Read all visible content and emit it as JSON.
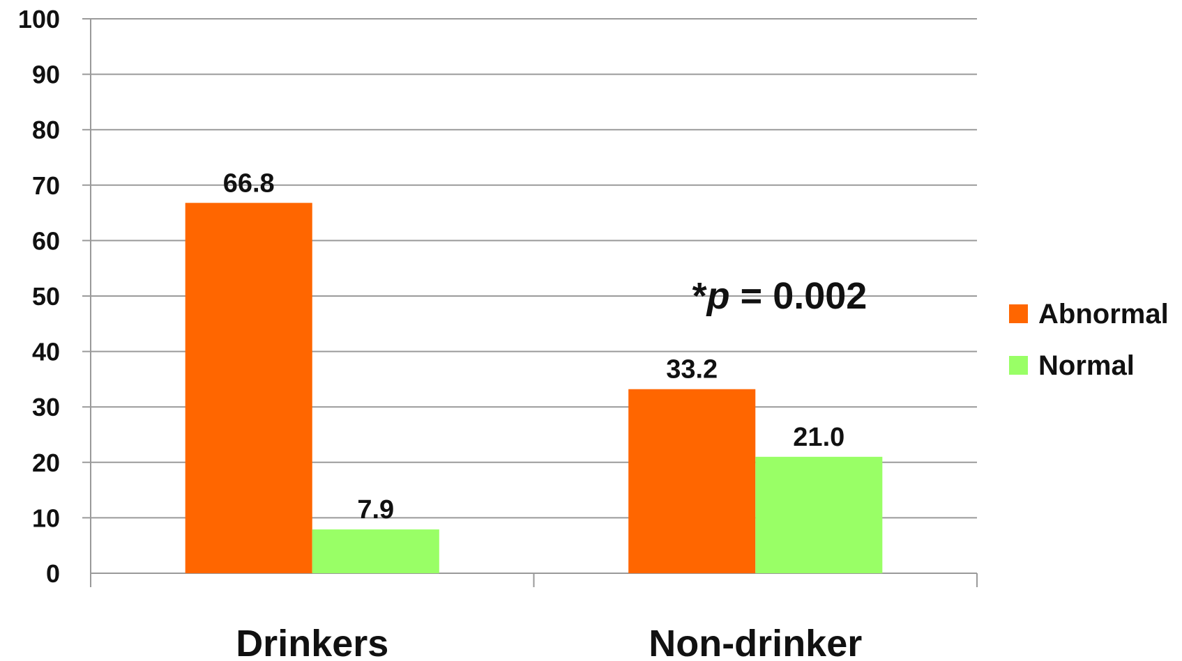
{
  "chart_data": {
    "type": "bar",
    "categories": [
      "Drinkers",
      "Non-drinker"
    ],
    "series": [
      {
        "name": "Abnormal",
        "values": [
          66.8,
          33.2
        ],
        "labels": [
          "66.8",
          "33.2"
        ],
        "color": "#ff6600"
      },
      {
        "name": "Normal",
        "values": [
          7.9,
          21.0
        ],
        "labels": [
          "7.9",
          "21.0"
        ],
        "color": "#99ff66"
      }
    ],
    "ylim": [
      0,
      100
    ],
    "yticks": [
      0,
      10,
      20,
      30,
      40,
      50,
      60,
      70,
      80,
      90,
      100
    ],
    "grid": true,
    "legend_position": "right",
    "title": "",
    "xlabel": "",
    "ylabel": "",
    "annotation": {
      "prefix": "*",
      "italic": "p",
      "suffix": " = 0.002"
    }
  }
}
